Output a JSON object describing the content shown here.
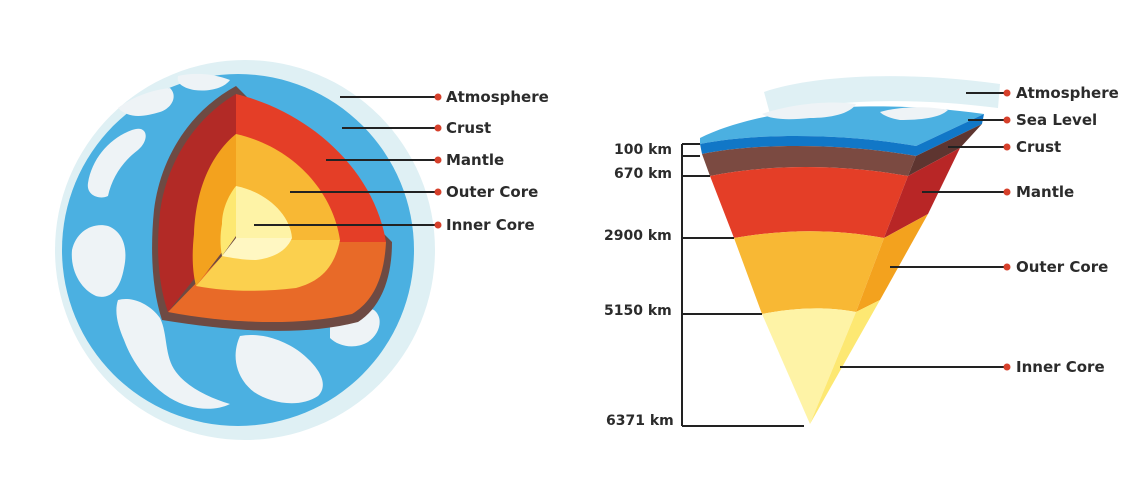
{
  "colors": {
    "atmosphere": "#dff0f4",
    "ocean": "#4bb0e1",
    "land": "#eef3f6",
    "crust_edge": "#6e4a43",
    "crust_dark": "#b22a26",
    "mantle": "#e43e27",
    "mantle_side": "#b82626",
    "mantle_bottom": "#e86a28",
    "outer_core": "#f8b834",
    "outer_core_side": "#f3a21e",
    "outer_core_bottom": "#fbd04e",
    "inner_core": "#fef3a6",
    "inner_core_side": "#fde872",
    "crust_layer": "#7b4a41",
    "sea": "#1177c7",
    "leader": "#222222",
    "dot": "#d6402b"
  },
  "globe": {
    "labels": {
      "atmosphere": "Atmosphere",
      "crust": "Crust",
      "mantle": "Mantle",
      "outer_core": "Outer Core",
      "inner_core": "Inner Core"
    }
  },
  "cross_section": {
    "labels": {
      "atmosphere": "Atmosphere",
      "sea_level": "Sea Level",
      "crust": "Crust",
      "mantle": "Mantle",
      "outer_core": "Outer Core",
      "inner_core": "Inner Core"
    },
    "depths": [
      "100 km",
      "670 km",
      "2900 km",
      "5150 km",
      "6371 km"
    ]
  }
}
